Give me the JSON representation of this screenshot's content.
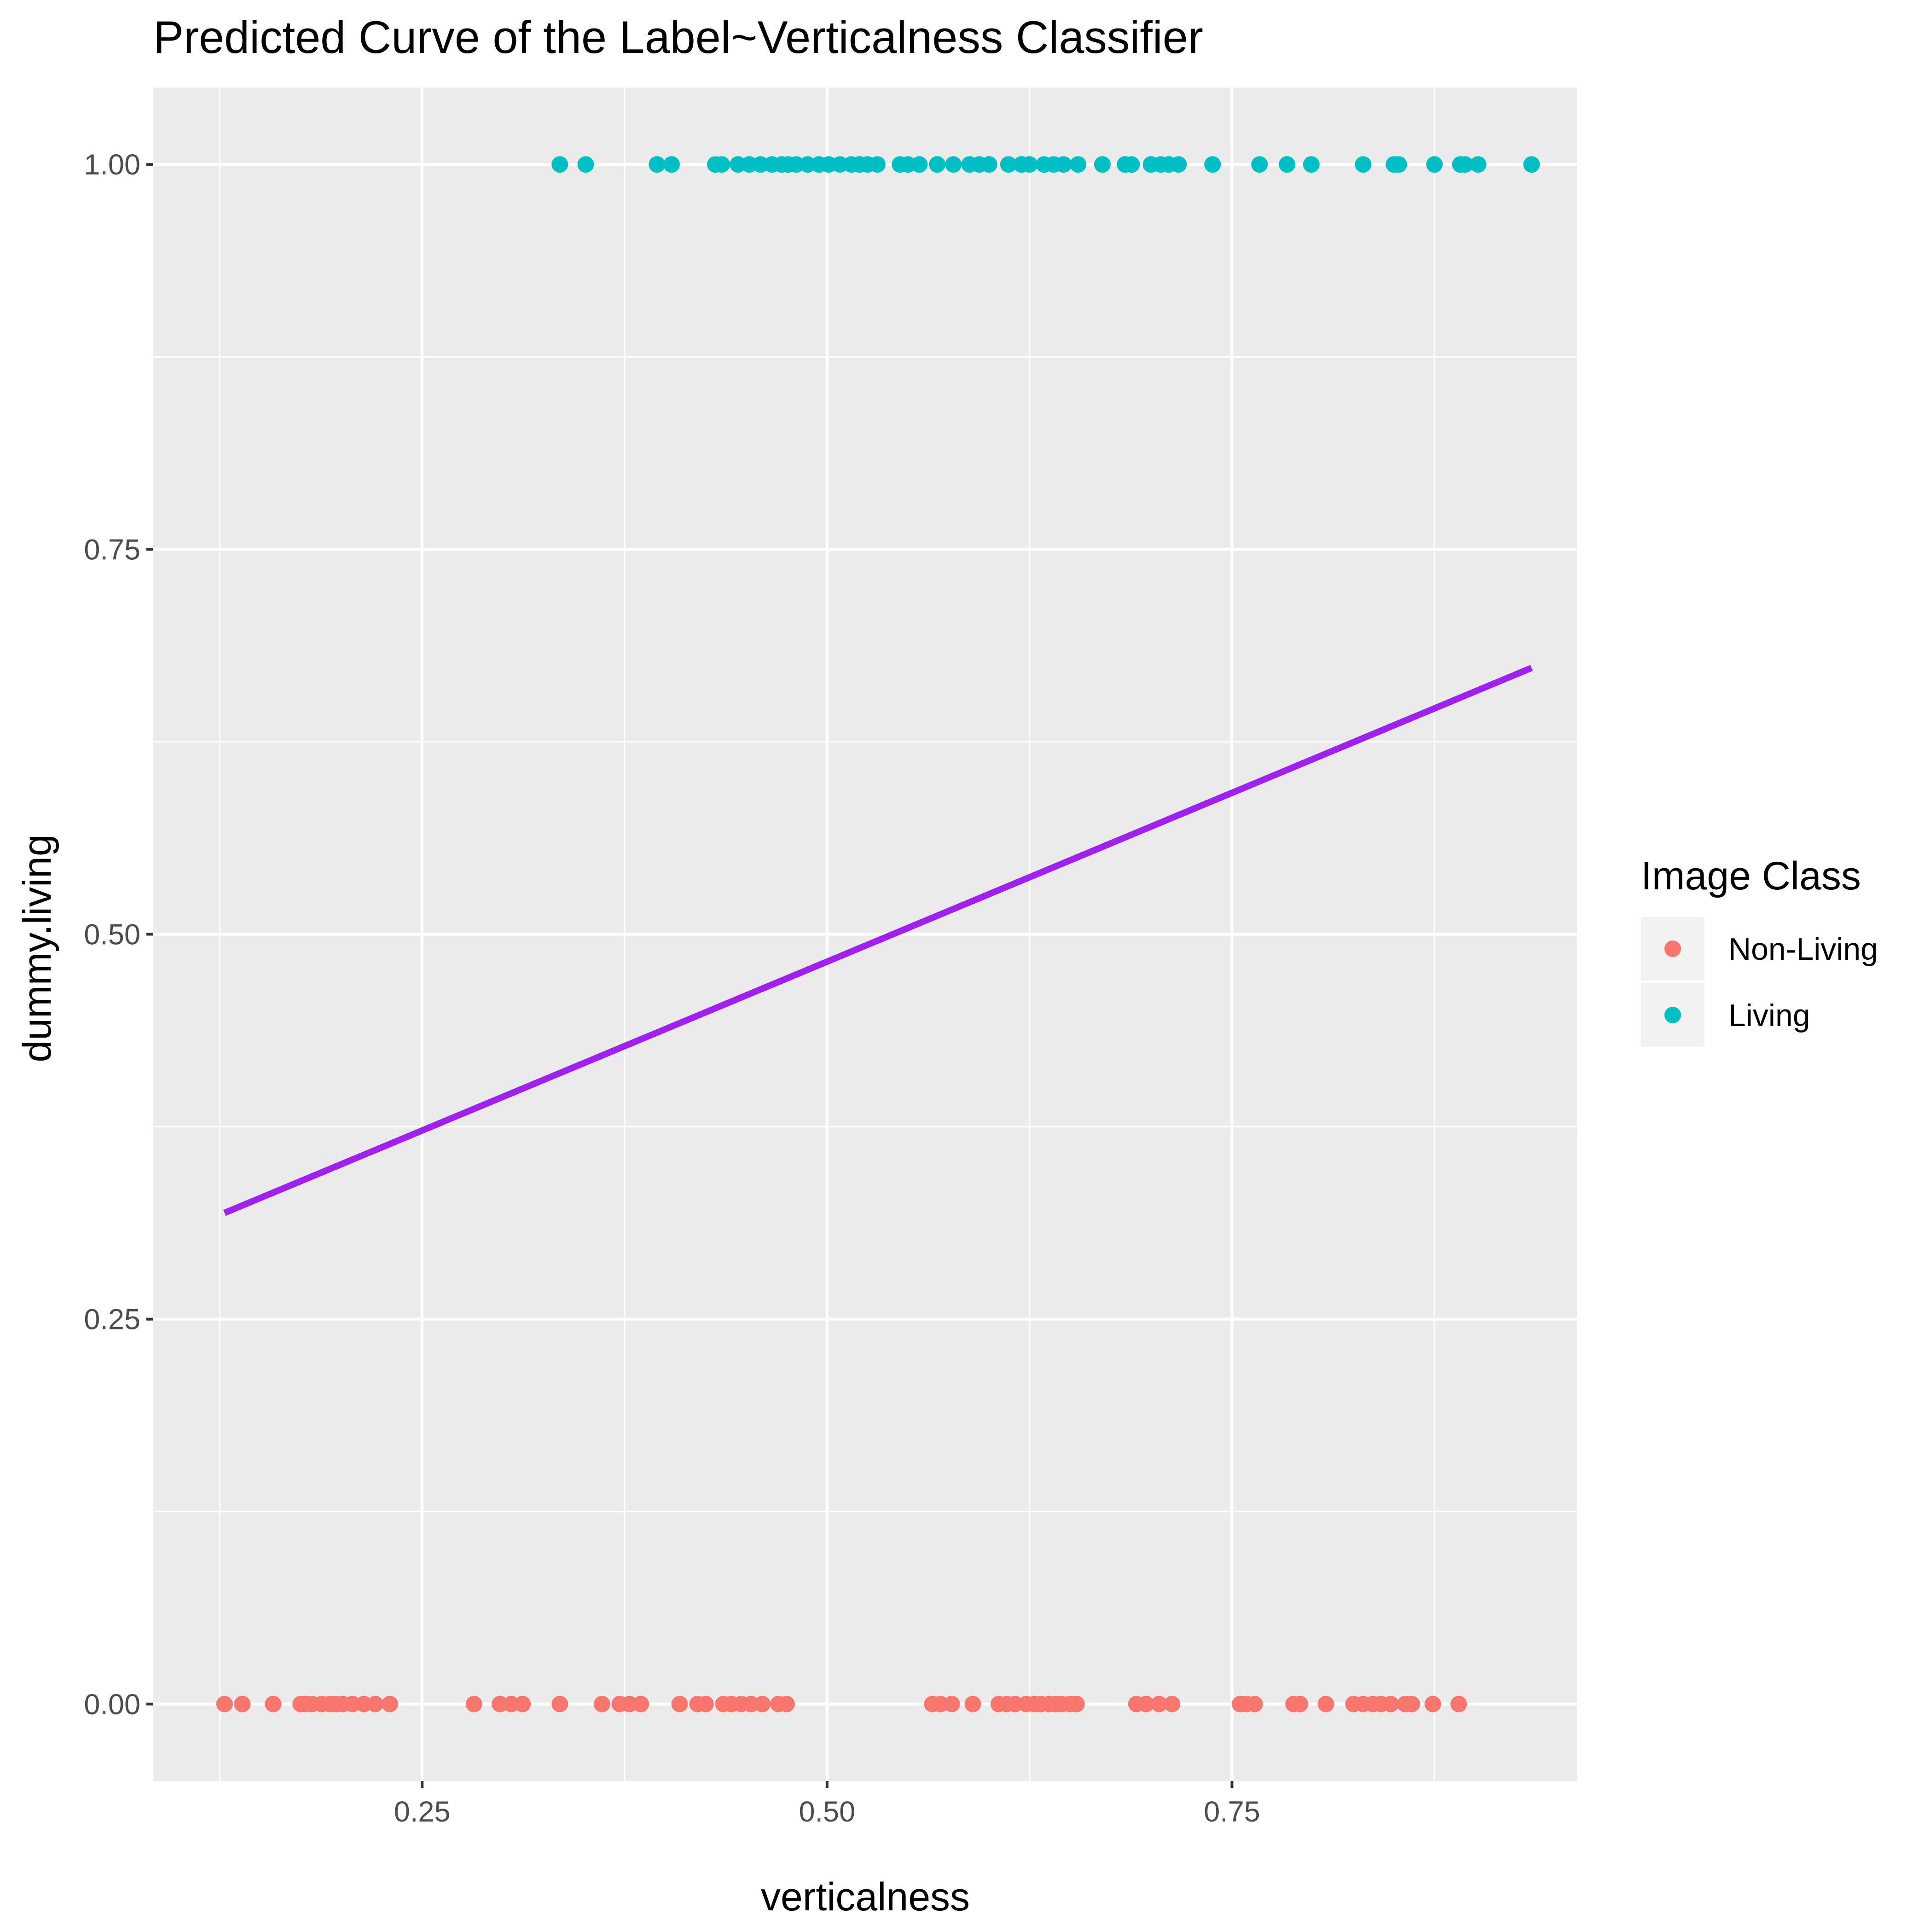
{
  "chart_data": {
    "type": "scatter",
    "title": "Predicted Curve of the Label~Verticalness Classifier",
    "xlabel": "verticalness",
    "ylabel": "dummy.living",
    "xlim": [
      0.084,
      0.963
    ],
    "ylim": [
      -0.05,
      1.05
    ],
    "x_ticks": [
      0.25,
      0.5,
      0.75
    ],
    "x_tick_labels": [
      "0.25",
      "0.50",
      "0.75"
    ],
    "x_minor_ticks": [
      0.125,
      0.375,
      0.625,
      0.875
    ],
    "y_ticks": [
      0,
      0.25,
      0.5,
      0.75,
      1.0
    ],
    "y_tick_labels": [
      "0.00",
      "0.25",
      "0.50",
      "0.75",
      "1.00"
    ],
    "y_minor_ticks": [
      0.125,
      0.375,
      0.625,
      0.875
    ],
    "grid": true,
    "panel_background": "#ebebeb",
    "legend": {
      "title": "Image Class",
      "position": "right",
      "entries": [
        {
          "label": "Non-Living",
          "color": "#f8766d"
        },
        {
          "label": "Living",
          "color": "#00bfc4"
        }
      ]
    },
    "series": [
      {
        "name": "Non-Living",
        "color": "#f8766d",
        "y": 0,
        "x": [
          0.128,
          0.139,
          0.158,
          0.175,
          0.178,
          0.182,
          0.188,
          0.193,
          0.197,
          0.201,
          0.207,
          0.214,
          0.221,
          0.23,
          0.282,
          0.298,
          0.305,
          0.312,
          0.335,
          0.361,
          0.372,
          0.378,
          0.385,
          0.409,
          0.42,
          0.425,
          0.436,
          0.441,
          0.447,
          0.453,
          0.46,
          0.47,
          0.475,
          0.565,
          0.57,
          0.577,
          0.59,
          0.606,
          0.611,
          0.616,
          0.623,
          0.628,
          0.632,
          0.637,
          0.641,
          0.645,
          0.65,
          0.654,
          0.691,
          0.697,
          0.705,
          0.713,
          0.755,
          0.759,
          0.764,
          0.788,
          0.792,
          0.808,
          0.825,
          0.831,
          0.837,
          0.842,
          0.848,
          0.857,
          0.861,
          0.874,
          0.89
        ]
      },
      {
        "name": "Living",
        "color": "#00bfc4",
        "y": 1,
        "x": [
          0.335,
          0.351,
          0.395,
          0.404,
          0.431,
          0.435,
          0.445,
          0.452,
          0.459,
          0.466,
          0.472,
          0.476,
          0.481,
          0.488,
          0.495,
          0.501,
          0.508,
          0.515,
          0.52,
          0.525,
          0.531,
          0.545,
          0.55,
          0.557,
          0.568,
          0.578,
          0.588,
          0.594,
          0.6,
          0.612,
          0.62,
          0.625,
          0.634,
          0.64,
          0.646,
          0.655,
          0.67,
          0.684,
          0.688,
          0.7,
          0.706,
          0.711,
          0.717,
          0.738,
          0.767,
          0.784,
          0.799,
          0.831,
          0.85,
          0.853,
          0.875,
          0.891,
          0.894,
          0.902,
          0.935
        ]
      },
      {
        "name": "",
        "type": "line",
        "color": "#a020f0",
        "x": [
          0.128,
          0.935
        ],
        "y": [
          0.319,
          0.673
        ]
      }
    ]
  }
}
